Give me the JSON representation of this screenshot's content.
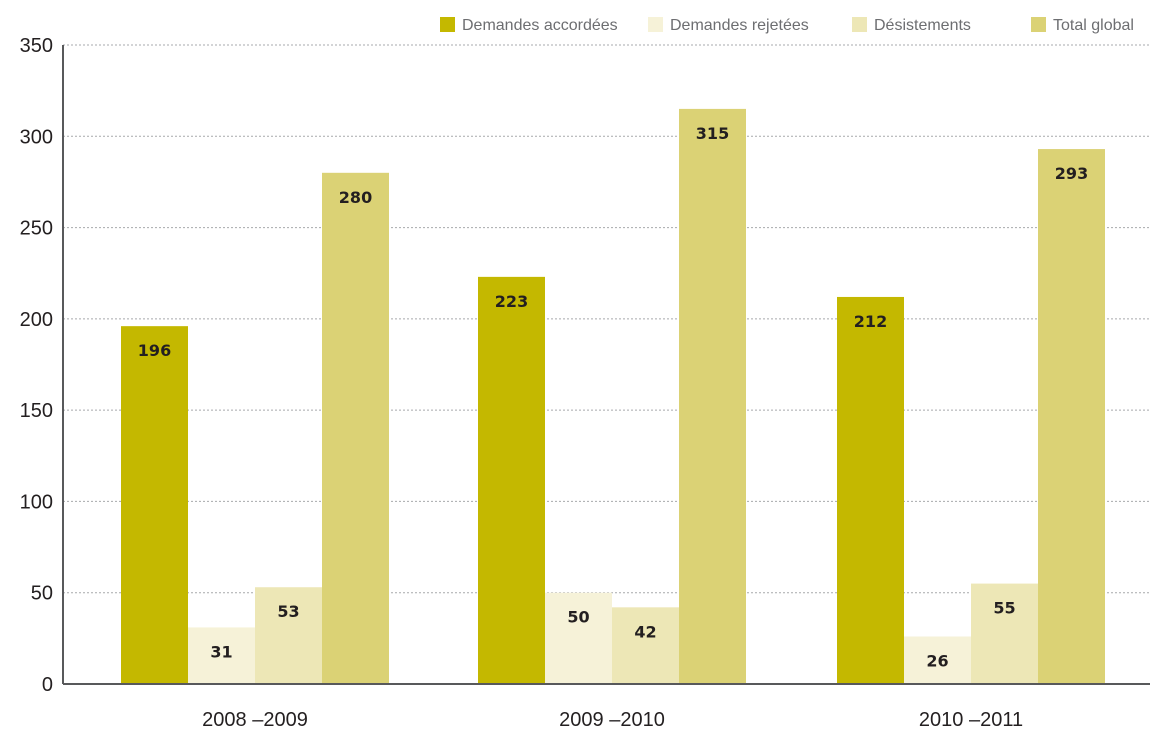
{
  "chart_data": {
    "type": "bar",
    "categories": [
      "2008 –2009",
      "2009 –2010",
      "2010 –2011"
    ],
    "series": [
      {
        "name": "Demandes accordées",
        "color": "#c4b800",
        "values": [
          196,
          223,
          212
        ]
      },
      {
        "name": "Demandes rejetées",
        "color": "#f6f2d8",
        "values": [
          31,
          50,
          26
        ]
      },
      {
        "name": "Désistements",
        "color": "#ede7b6",
        "values": [
          53,
          42,
          55
        ]
      },
      {
        "name": "Total global",
        "color": "#dbd275",
        "values": [
          280,
          315,
          293
        ]
      }
    ],
    "ylim": [
      0,
      350
    ],
    "yticks": [
      0,
      50,
      100,
      150,
      200,
      250,
      300,
      350
    ],
    "ytick_labels": [
      "0",
      "50",
      "100",
      "150",
      "200",
      "250",
      "300",
      "350"
    ],
    "grid": true,
    "legend_position": "top-right",
    "data_labels": true
  }
}
